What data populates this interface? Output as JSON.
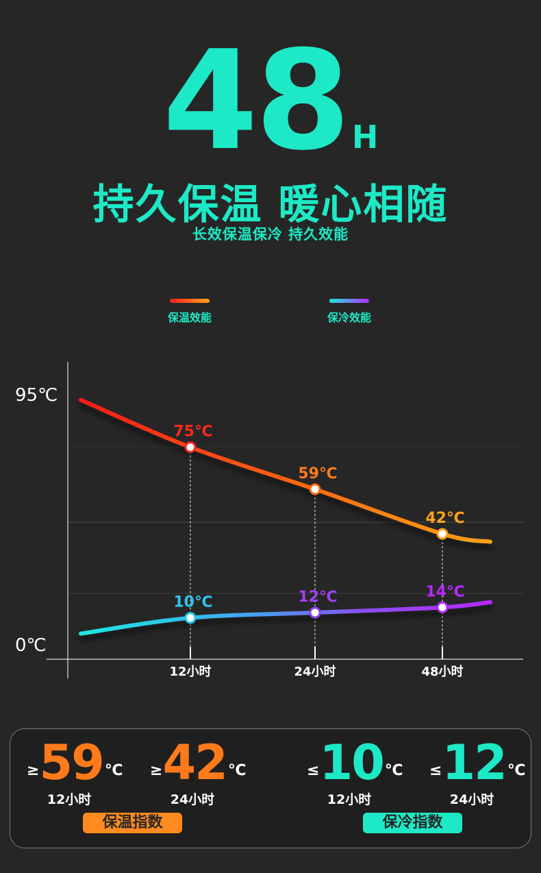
{
  "hero": {
    "number": "48",
    "unit": "H"
  },
  "headline": "持久保温 暖心相随",
  "subline": "长效保温保冷 持久效能",
  "colors": {
    "accent": "#1de9c6",
    "warm_start": "#ff1a1a",
    "warm_end": "#ffa31a",
    "cold_start": "#1de9e0",
    "cold_end": "#b829ff"
  },
  "chart_data": {
    "type": "line",
    "categories": [
      "12小时",
      "24小时",
      "48小时"
    ],
    "y_tick_labels": [
      "95℃",
      "0℃"
    ],
    "ylim": [
      0,
      95
    ],
    "legend_position": "top-center",
    "series": [
      {
        "name": "保温效能",
        "values": [
          75,
          59,
          42
        ],
        "labels": [
          "75℃",
          "59℃",
          "42℃"
        ],
        "start_value": 93,
        "end_value": 39
      },
      {
        "name": "保冷效能",
        "values": [
          10,
          12,
          14
        ],
        "labels": [
          "10℃",
          "12℃",
          "14℃"
        ],
        "start_value": 4,
        "end_value": 16
      }
    ]
  },
  "stats": [
    {
      "cmp": "≥",
      "value": "59",
      "unit": "℃",
      "time": "12小时",
      "group": "warm"
    },
    {
      "cmp": "≥",
      "value": "42",
      "unit": "℃",
      "time": "24小时",
      "group": "warm"
    },
    {
      "cmp": "≤",
      "value": "10",
      "unit": "℃",
      "time": "12小时",
      "group": "cold"
    },
    {
      "cmp": "≤",
      "value": "12",
      "unit": "℃",
      "time": "24小时",
      "group": "cold"
    }
  ],
  "badges": {
    "warm": "保温指数",
    "cold": "保冷指数"
  }
}
